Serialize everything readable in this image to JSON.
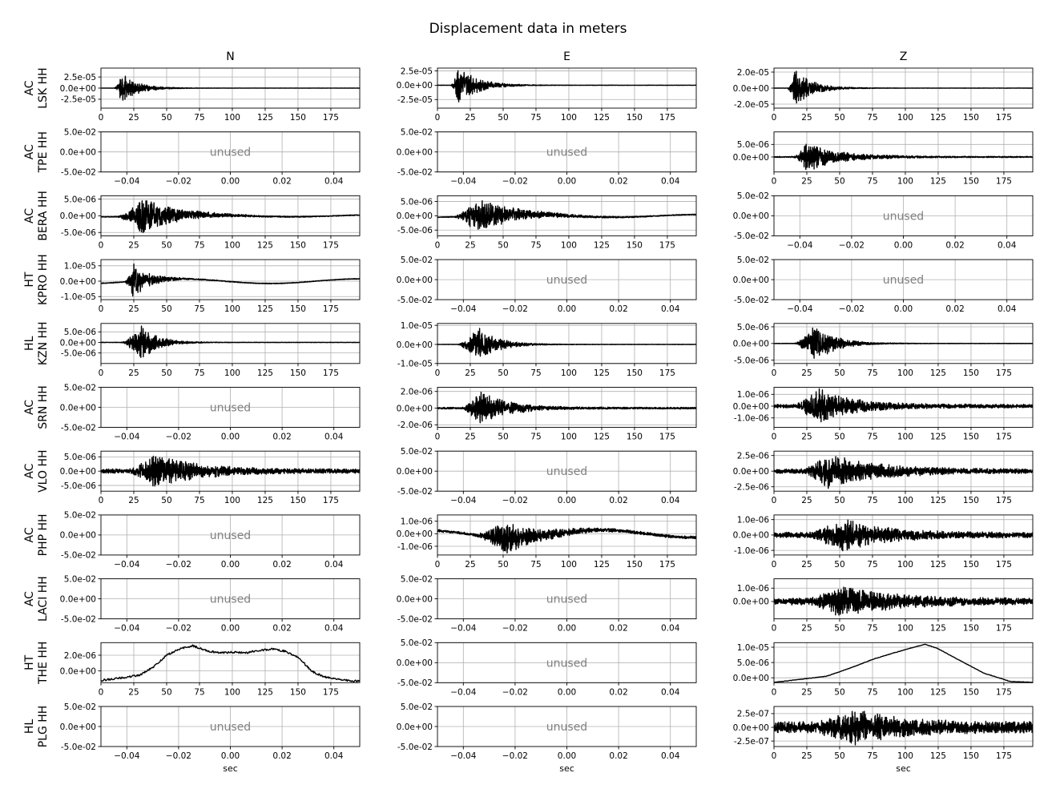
{
  "figure_title": "Displacement data in meters",
  "chart_data": {
    "type": "line",
    "title": "Displacement data in meters",
    "columns": [
      "N",
      "E",
      "Z"
    ],
    "xlabel": "sec",
    "seismogram_xlim": [
      0,
      197
    ],
    "seismogram_xticks": [
      0,
      25,
      50,
      75,
      100,
      125,
      150,
      175
    ],
    "unused_label": "unused",
    "unused_xlim": [
      -0.05,
      0.05
    ],
    "unused_xticks": [
      -0.04,
      -0.02,
      0.0,
      0.02,
      0.04
    ],
    "unused_xtick_labels": [
      "−0.04",
      "−0.02",
      "0.00",
      "0.02",
      "0.04"
    ],
    "unused_ylim": [
      -0.05,
      0.05
    ],
    "unused_yticks": [
      0.05,
      0.0,
      -0.05
    ],
    "unused_ytick_labels": [
      "5.0e-02",
      "0.0e+00",
      "-5.0e-02"
    ],
    "grid": true,
    "line_color": "#000000",
    "stations": [
      {
        "network": "AC",
        "station": "LSK HH",
        "channels": [
          {
            "column": "N",
            "used": true,
            "ylim": [
              -4.5e-05,
              4.5e-05
            ],
            "yticks": [
              2.5e-05,
              0,
              -2.5e-05
            ],
            "ytick_labels": [
              "2.5e-05",
              "0.0e+00",
              "-2.5e-05"
            ],
            "amplitude": 3.4e-05,
            "onset": 10,
            "peak": 16,
            "decay": 12,
            "noise": 0.008,
            "drift": 0
          },
          {
            "column": "E",
            "used": true,
            "ylim": [
              -4e-05,
              3e-05
            ],
            "yticks": [
              2.5e-05,
              0,
              -2.5e-05
            ],
            "ytick_labels": [
              "2.5e-05",
              "0.0e+00",
              "-2.5e-05"
            ],
            "amplitude": 3.6e-05,
            "onset": 10,
            "peak": 16,
            "decay": 14,
            "noise": 0.008,
            "drift": 0
          },
          {
            "column": "Z",
            "used": true,
            "ylim": [
              -2.5e-05,
              2.5e-05
            ],
            "yticks": [
              2e-05,
              0,
              -2e-05
            ],
            "ytick_labels": [
              "2.0e-05",
              "0.0e+00",
              "-2.0e-05"
            ],
            "amplitude": 2.4e-05,
            "onset": 10,
            "peak": 16,
            "decay": 13,
            "noise": 0.008,
            "drift": 0
          }
        ]
      },
      {
        "network": "AC",
        "station": "TPE HH",
        "channels": [
          {
            "column": "N",
            "used": false
          },
          {
            "column": "E",
            "used": false
          },
          {
            "column": "Z",
            "used": true,
            "ylim": [
              -6e-06,
              1e-05
            ],
            "yticks": [
              5e-06,
              0
            ],
            "ytick_labels": [
              "5.0e-06",
              "0.0e+00"
            ],
            "amplitude": 6e-06,
            "onset": 15,
            "peak": 25,
            "decay": 25,
            "noise": 0.04,
            "drift": 0
          }
        ]
      },
      {
        "network": "AC",
        "station": "BERA HH",
        "channels": [
          {
            "column": "N",
            "used": true,
            "ylim": [
              -6e-06,
              6e-06
            ],
            "yticks": [
              5e-06,
              0,
              -5e-06
            ],
            "ytick_labels": [
              "5.0e-06",
              "0.0e+00",
              "-5.0e-06"
            ],
            "amplitude": 5.8e-06,
            "onset": 12,
            "peak": 32,
            "decay": 25,
            "noise": 0.02,
            "drift": 3e-07
          },
          {
            "column": "E",
            "used": true,
            "ylim": [
              -7e-06,
              7e-06
            ],
            "yticks": [
              5e-06,
              0,
              -5e-06
            ],
            "ytick_labels": [
              "5.0e-06",
              "0.0e+00",
              "-5.0e-06"
            ],
            "amplitude": 6.5e-06,
            "onset": 12,
            "peak": 30,
            "decay": 28,
            "noise": 0.02,
            "drift": 5e-07
          },
          {
            "column": "Z",
            "used": false
          }
        ]
      },
      {
        "network": "HT",
        "station": "KPRO HH",
        "channels": [
          {
            "column": "N",
            "used": true,
            "ylim": [
              -1.2e-05,
              1.4e-05
            ],
            "yticks": [
              1e-05,
              0,
              -1e-05
            ],
            "ytick_labels": [
              "1.0e-05",
              "0.0e+00",
              "-1.0e-05"
            ],
            "amplitude": 1.2e-05,
            "onset": 18,
            "peak": 25,
            "decay": 12,
            "noise": 0.02,
            "drift": 1.5e-06
          },
          {
            "column": "E",
            "used": false
          },
          {
            "column": "Z",
            "used": false
          }
        ]
      },
      {
        "network": "HL",
        "station": "KZN HH",
        "channels": [
          {
            "column": "N",
            "used": true,
            "ylim": [
              -1e-05,
              9e-06
            ],
            "yticks": [
              5e-06,
              0,
              -5e-06
            ],
            "ytick_labels": [
              "5.0e-06",
              "0.0e+00",
              "-5.0e-06"
            ],
            "amplitude": 9e-06,
            "onset": 15,
            "peak": 31,
            "decay": 12,
            "noise": 0.01,
            "drift": 0
          },
          {
            "column": "E",
            "used": true,
            "ylim": [
              -1e-05,
              1.1e-05
            ],
            "yticks": [
              1e-05,
              0,
              -1e-05
            ],
            "ytick_labels": [
              "1.0e-05",
              "0.0e+00",
              "-1.0e-05"
            ],
            "amplitude": 1e-05,
            "onset": 15,
            "peak": 31,
            "decay": 14,
            "noise": 0.01,
            "drift": 0
          },
          {
            "column": "Z",
            "used": true,
            "ylim": [
              -6e-06,
              6e-06
            ],
            "yticks": [
              5e-06,
              0,
              -5e-06
            ],
            "ytick_labels": [
              "5.0e-06",
              "0.0e+00",
              "-5.0e-06"
            ],
            "amplitude": 6e-06,
            "onset": 15,
            "peak": 31,
            "decay": 15,
            "noise": 0.01,
            "drift": 0
          }
        ]
      },
      {
        "network": "AC",
        "station": "SRN HH",
        "channels": [
          {
            "column": "N",
            "used": false
          },
          {
            "column": "E",
            "used": true,
            "ylim": [
              -2.3e-06,
              2.5e-06
            ],
            "yticks": [
              2e-06,
              0,
              -2e-06
            ],
            "ytick_labels": [
              "2.0e-06",
              "0.0e+00",
              "-2.0e-06"
            ],
            "amplitude": 2.2e-06,
            "onset": 18,
            "peak": 33,
            "decay": 20,
            "noise": 0.05,
            "drift": 0
          },
          {
            "column": "Z",
            "used": true,
            "ylim": [
              -1.8e-06,
              1.6e-06
            ],
            "yticks": [
              1e-06,
              0,
              -1e-06
            ],
            "ytick_labels": [
              "1.0e-06",
              "0.0e+00",
              "-1.0e-06"
            ],
            "amplitude": 1.6e-06,
            "onset": 15,
            "peak": 33,
            "decay": 25,
            "noise": 0.1,
            "drift": 0
          }
        ]
      },
      {
        "network": "AC",
        "station": "VLO HH",
        "channels": [
          {
            "column": "N",
            "used": true,
            "ylim": [
              -7e-06,
              7e-06
            ],
            "yticks": [
              5e-06,
              0,
              -5e-06
            ],
            "ytick_labels": [
              "5.0e-06",
              "0.0e+00",
              "-5.0e-06"
            ],
            "amplitude": 6.5e-06,
            "onset": 20,
            "peak": 42,
            "decay": 30,
            "noise": 0.12,
            "drift": 0
          },
          {
            "column": "E",
            "used": false
          },
          {
            "column": "Z",
            "used": true,
            "ylim": [
              -3.2e-06,
              3.2e-06
            ],
            "yticks": [
              2.5e-06,
              0,
              -2.5e-06
            ],
            "ytick_labels": [
              "2.5e-06",
              "0.0e+00",
              "-2.5e-06"
            ],
            "amplitude": 3e-06,
            "onset": 20,
            "peak": 42,
            "decay": 35,
            "noise": 0.12,
            "drift": 0
          }
        ]
      },
      {
        "network": "AC",
        "station": "PHP HH",
        "channels": [
          {
            "column": "N",
            "used": false
          },
          {
            "column": "E",
            "used": true,
            "ylim": [
              -1.7e-06,
              1.5e-06
            ],
            "yticks": [
              1e-06,
              0,
              -1e-06
            ],
            "ytick_labels": [
              "1.0e-06",
              "0.0e+00",
              "-1.0e-06"
            ],
            "amplitude": 1.4e-06,
            "onset": 28,
            "peak": 52,
            "decay": 25,
            "noise": 0.08,
            "drift": 3e-07
          },
          {
            "column": "Z",
            "used": true,
            "ylim": [
              -1.3e-06,
              1.3e-06
            ],
            "yticks": [
              1e-06,
              0,
              -1e-06
            ],
            "ytick_labels": [
              "1.0e-06",
              "0.0e+00",
              "-1.0e-06"
            ],
            "amplitude": 1.2e-06,
            "onset": 25,
            "peak": 52,
            "decay": 30,
            "noise": 0.15,
            "drift": 0
          }
        ]
      },
      {
        "network": "AC",
        "station": "LACI HH",
        "channels": [
          {
            "column": "N",
            "used": false
          },
          {
            "column": "E",
            "used": false
          },
          {
            "column": "Z",
            "used": true,
            "ylim": [
              -1.3e-06,
              1.7e-06
            ],
            "yticks": [
              1e-06,
              0
            ],
            "ytick_labels": [
              "1.0e-06",
              "0.0e+00"
            ],
            "amplitude": 1.3e-06,
            "onset": 25,
            "peak": 52,
            "decay": 35,
            "noise": 0.2,
            "drift": 0
          }
        ]
      },
      {
        "network": "HT",
        "station": "THE HH",
        "channels": [
          {
            "column": "N",
            "used": true,
            "kind": "trend",
            "ylim": [
              -1.5e-06,
              3.6e-06
            ],
            "yticks": [
              2e-06,
              0
            ],
            "ytick_labels": [
              "2.0e-06",
              "0.0e+00"
            ],
            "trend_x": [
              0,
              10,
              20,
              30,
              40,
              50,
              60,
              70,
              80,
              90,
              100,
              110,
              120,
              130,
              140,
              150,
              160,
              170,
              180,
              190,
              197
            ],
            "trend_y": [
              -1.2e-06,
              -1e-06,
              -8e-07,
              -5e-07,
              5e-07,
              2e-06,
              2.8e-06,
              3.2e-06,
              2.6e-06,
              2.3e-06,
              2.4e-06,
              2.3e-06,
              2.6e-06,
              2.8e-06,
              2.5e-06,
              1.8e-06,
              0.0,
              -8e-07,
              -1e-06,
              -1.3e-06,
              -1.3e-06
            ],
            "wiggle": 2.5e-07
          },
          {
            "column": "E",
            "used": false
          },
          {
            "column": "Z",
            "used": true,
            "kind": "trend",
            "ylim": [
              -1.6e-06,
              1.15e-05
            ],
            "yticks": [
              1e-05,
              5e-06,
              0
            ],
            "ytick_labels": [
              "1.0e-05",
              "5.0e-06",
              "0.0e+00"
            ],
            "trend_x": [
              0,
              20,
              40,
              60,
              75,
              90,
              105,
              115,
              125,
              140,
              160,
              180,
              197
            ],
            "trend_y": [
              -1.5e-06,
              -5e-07,
              5e-07,
              3.5e-06,
              6e-06,
              8e-06,
              9.8e-06,
              1.1e-05,
              9.5e-06,
              6e-06,
              1.5e-06,
              -1.2e-06,
              -1.5e-06
            ],
            "wiggle": 1.5e-07
          }
        ]
      },
      {
        "network": "HL",
        "station": "PLG HH",
        "channels": [
          {
            "column": "N",
            "used": false
          },
          {
            "column": "E",
            "used": false
          },
          {
            "column": "Z",
            "used": true,
            "ylim": [
              -3.5e-07,
              3.8e-07
            ],
            "yticks": [
              2.5e-07,
              0,
              -2.5e-07
            ],
            "ytick_labels": [
              "2.5e-07",
              "0.0e+00",
              "-2.5e-07"
            ],
            "amplitude": 3.6e-07,
            "onset": 28,
            "peak": 62,
            "decay": 30,
            "noise": 0.3,
            "drift": 0
          }
        ]
      }
    ]
  }
}
